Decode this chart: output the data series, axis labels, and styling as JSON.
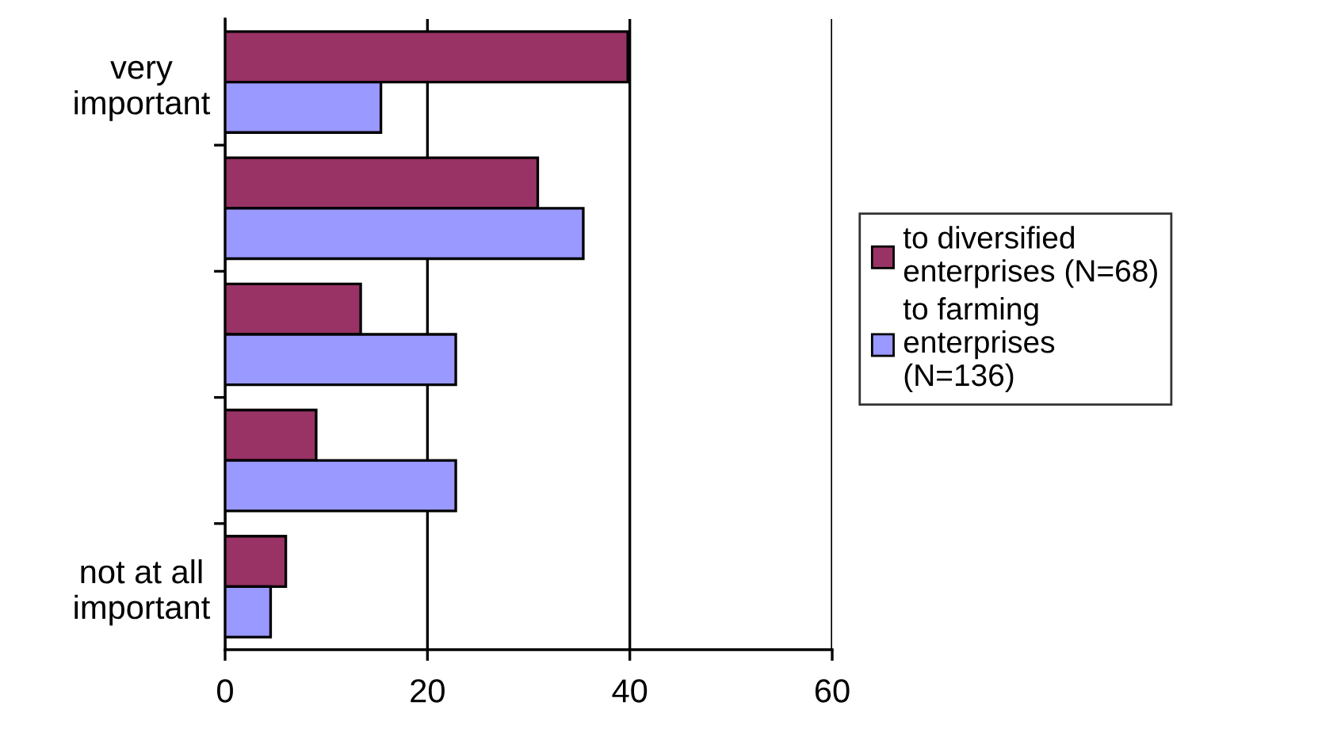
{
  "chart_data": {
    "type": "bar",
    "orientation": "horizontal",
    "categories": [
      "very important",
      null,
      null,
      null,
      "not at all important"
    ],
    "series": [
      {
        "name": "to diversified enterprises (N=68)",
        "color": "#993366",
        "values": [
          39.8,
          30.9,
          13.4,
          9.0,
          6.0
        ]
      },
      {
        "name": "to farming enterprises (N=136)",
        "color": "#9999ff",
        "values": [
          15.4,
          35.4,
          22.8,
          22.8,
          4.5
        ]
      }
    ],
    "xlim": [
      0,
      60
    ],
    "xticks": [
      0,
      20,
      40,
      60
    ],
    "grid": "x",
    "legend": "right"
  }
}
